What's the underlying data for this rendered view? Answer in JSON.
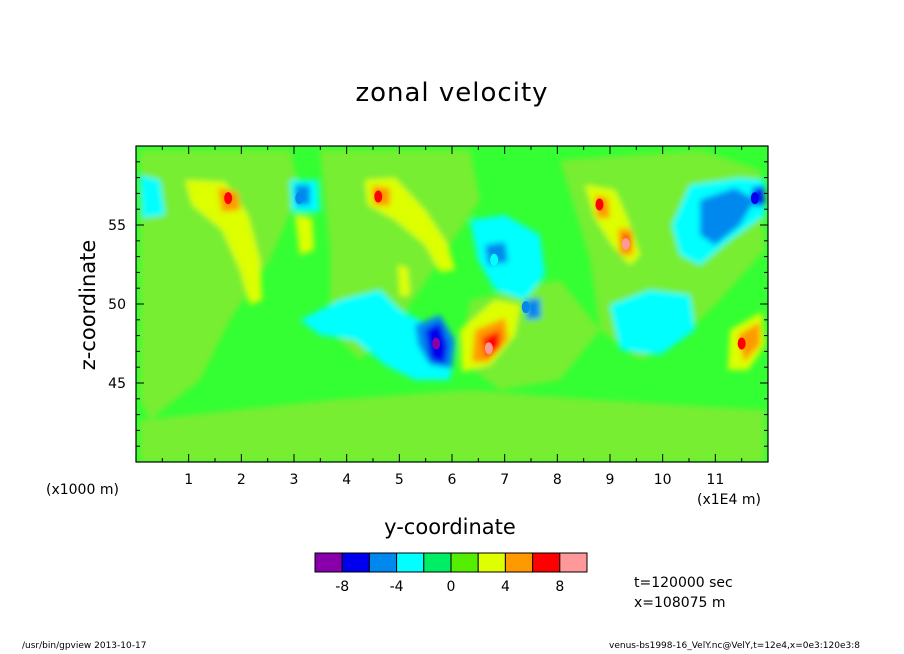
{
  "chart_data": {
    "type": "heatmap",
    "title": "zonal velocity",
    "xlabel": "y-coordinate",
    "ylabel": "z-coordinate",
    "x_multiplier_label": "(x1000 m)",
    "x_unit_label": "(x1E4 m)",
    "xlim": [
      0,
      12
    ],
    "ylim": [
      40,
      60
    ],
    "x_ticks": [
      "1",
      "2",
      "3",
      "4",
      "5",
      "6",
      "7",
      "8",
      "9",
      "10",
      "11"
    ],
    "y_ticks": [
      "45",
      "50",
      "55"
    ],
    "background_level_color": "#33ff33",
    "colorbar": {
      "colors": [
        "#8800aa",
        "#0000ee",
        "#0088ee",
        "#00ffff",
        "#00ee66",
        "#55ee00",
        "#ddff00",
        "#ff9900",
        "#ff0000",
        "#ff9999"
      ],
      "tick_labels": [
        "-8",
        "-4",
        "0",
        "4",
        "8"
      ]
    },
    "features": [
      {
        "y": 5.7,
        "z": 47.5,
        "value": -9
      },
      {
        "y": 6.7,
        "z": 47.2,
        "value": 8
      },
      {
        "y": 1.75,
        "z": 56.7,
        "value": 6
      },
      {
        "y": 4.6,
        "z": 56.8,
        "value": 6
      },
      {
        "y": 8.8,
        "z": 56.3,
        "value": 6
      },
      {
        "y": 9.3,
        "z": 53.8,
        "value": 8
      },
      {
        "y": 11.5,
        "z": 47.5,
        "value": 6
      },
      {
        "y": 11.1,
        "z": 55.5,
        "value": -5
      },
      {
        "y": 11.75,
        "z": 56.7,
        "value": -7
      },
      {
        "y": 3.1,
        "z": 56.7,
        "value": -5
      },
      {
        "y": 7.4,
        "z": 49.8,
        "value": -6
      },
      {
        "y": 6.8,
        "z": 52.8,
        "value": -4
      }
    ]
  },
  "annotations": {
    "time": "t=120000 sec",
    "xpos": "x=108075 m"
  },
  "footer": {
    "left": "/usr/bin/gpview   2013-10-17",
    "right": "venus-bs1998-16_VelY.nc@VelY,t=12e4,x=0e3:120e3:8"
  }
}
